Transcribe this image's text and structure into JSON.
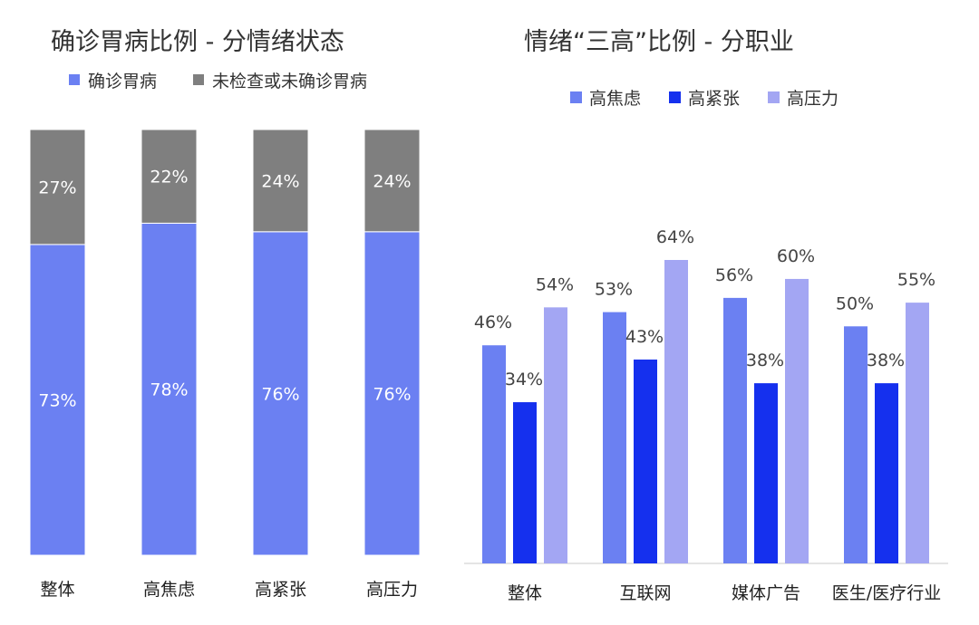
{
  "colors": {
    "diagnosed": "#6b80f2",
    "undiagnosed": "#7f7f7f",
    "high_anxiety": "#6b80f2",
    "high_tension": "#1530ee",
    "high_pressure": "#a3a6f3",
    "axis": "#c8c8c8"
  },
  "chart_data": [
    {
      "type": "bar",
      "stacked": true,
      "normalized": true,
      "title": "确诊胃病比例 - 分情绪状态",
      "categories": [
        "整体",
        "高焦虑",
        "高紧张",
        "高压力"
      ],
      "series": [
        {
          "name": "确诊胃病",
          "values": [
            73,
            78,
            76,
            76
          ],
          "labels": [
            "73%",
            "78%",
            "76%",
            "76%"
          ]
        },
        {
          "name": "未检查或未确诊胃病",
          "values": [
            27,
            22,
            24,
            24
          ],
          "labels": [
            "27%",
            "22%",
            "24%",
            "24%"
          ]
        }
      ],
      "ylim": [
        0,
        100
      ],
      "legend_position": "top-left",
      "grid": false
    },
    {
      "type": "bar",
      "stacked": false,
      "title": "情绪“三高”比例 - 分职业",
      "categories": [
        "整体",
        "互联网",
        "媒体广告",
        "医生/医疗行业"
      ],
      "series": [
        {
          "name": "高焦虑",
          "values": [
            46,
            53,
            56,
            50
          ],
          "labels": [
            "46%",
            "53%",
            "56%",
            "50%"
          ]
        },
        {
          "name": "高紧张",
          "values": [
            34,
            43,
            38,
            38
          ],
          "labels": [
            "34%",
            "43%",
            "38%",
            "38%"
          ]
        },
        {
          "name": "高压力",
          "values": [
            54,
            64,
            60,
            55
          ],
          "labels": [
            "54%",
            "64%",
            "60%",
            "55%"
          ]
        }
      ],
      "ylim": [
        0,
        100
      ],
      "legend_position": "top-center",
      "grid": false
    }
  ]
}
